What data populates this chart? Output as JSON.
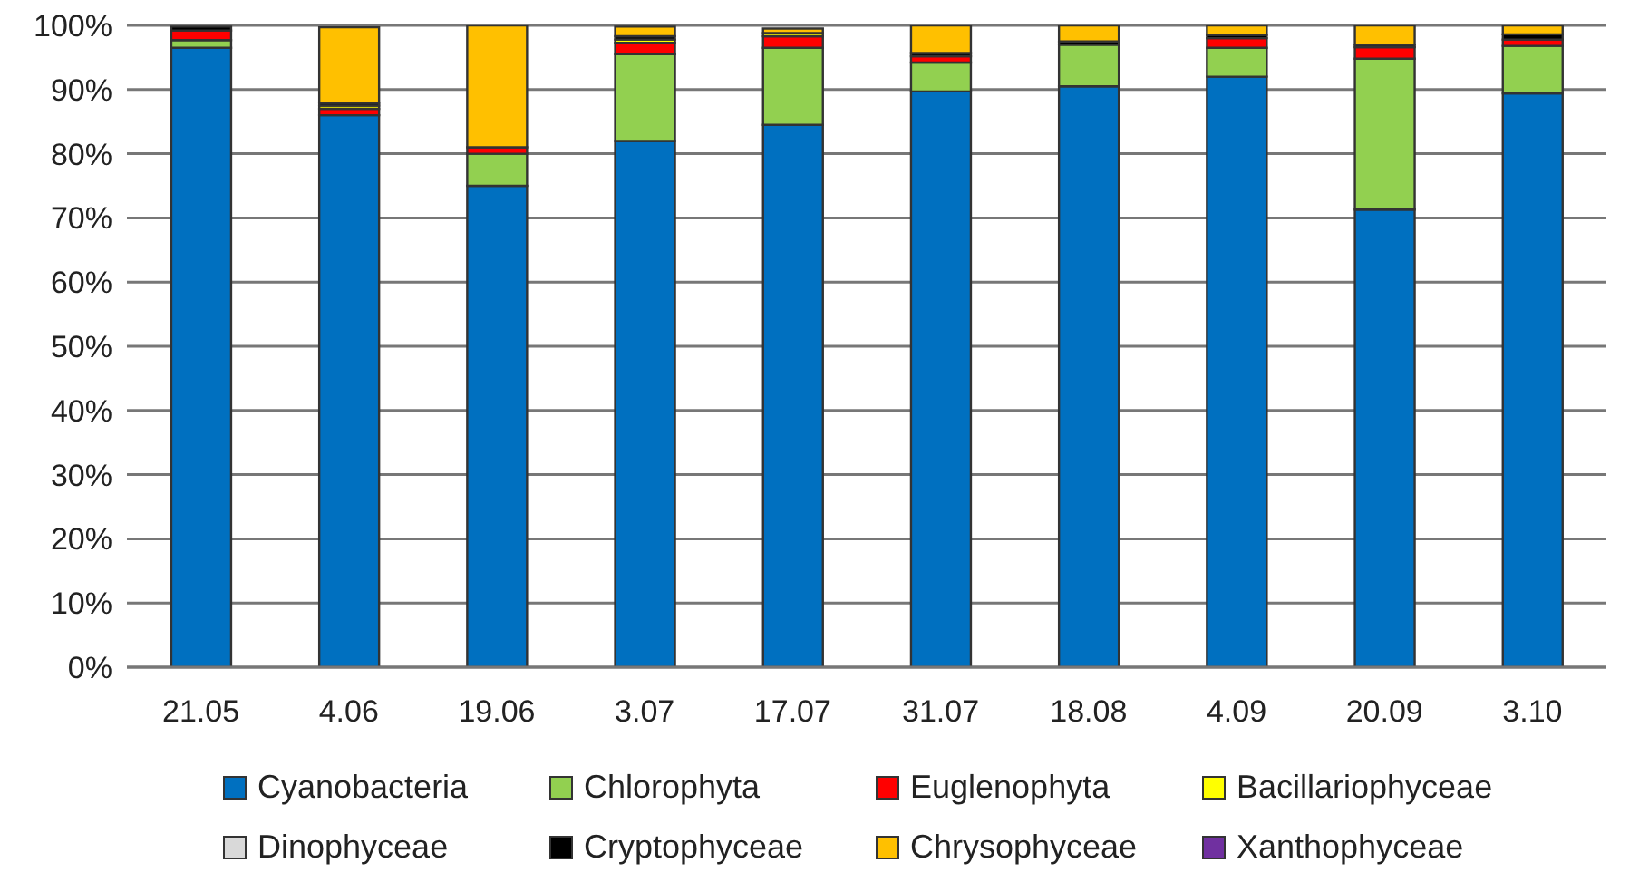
{
  "chart_data": {
    "type": "bar",
    "stacked": true,
    "categories": [
      "21.05",
      "4.06",
      "19.06",
      "3.07",
      "17.07",
      "31.07",
      "18.08",
      "4.09",
      "20.09",
      "3.10"
    ],
    "series": [
      {
        "name": "Cyanobacteria",
        "color": "#0070c0",
        "values": [
          96.5,
          86,
          75,
          82,
          84.5,
          89.7,
          90.5,
          92,
          71.3,
          89.4
        ]
      },
      {
        "name": "Chlorophyta",
        "color": "#92d050",
        "values": [
          1.2,
          0,
          5,
          13.5,
          12,
          4.5,
          6.5,
          4.5,
          23.5,
          7.4
        ]
      },
      {
        "name": "Euglenophyta",
        "color": "#ff0000",
        "values": [
          1.5,
          1,
          1,
          1.8,
          1.8,
          1,
          0,
          1.5,
          1.8,
          1
        ]
      },
      {
        "name": "Bacillariophyceae",
        "color": "#ffff00",
        "values": [
          null,
          0.5,
          0,
          0.5,
          0.5,
          0,
          0,
          0,
          0,
          0
        ]
      },
      {
        "name": "Dinophyceae",
        "color": "#d9d9d9",
        "values": [
          0,
          null,
          0,
          null,
          null,
          0,
          0,
          0,
          0,
          0
        ]
      },
      {
        "name": "Cryptophyceae",
        "color": "#000000",
        "values": [
          0.6,
          0.4,
          0,
          0.5,
          null,
          0.5,
          0.5,
          0.5,
          0.4,
          0.8
        ]
      },
      {
        "name": "Chrysophyceae",
        "color": "#ffc000",
        "values": [
          0,
          11.8,
          19,
          1.5,
          0.7,
          4.3,
          2.5,
          1.5,
          3,
          1.4
        ]
      },
      {
        "name": "Xanthophyceae",
        "color": "#7030a0",
        "values": [
          0,
          0,
          0,
          0,
          0,
          0,
          0,
          0,
          0,
          0
        ]
      }
    ],
    "ylim": [
      0,
      100
    ],
    "yticks": [
      {
        "value": 0,
        "label": "0%"
      },
      {
        "value": 10,
        "label": "10%"
      },
      {
        "value": 20,
        "label": "20%"
      },
      {
        "value": 30,
        "label": "30%"
      },
      {
        "value": 40,
        "label": "40%"
      },
      {
        "value": 50,
        "label": "50%"
      },
      {
        "value": 60,
        "label": "60%"
      },
      {
        "value": 70,
        "label": "70%"
      },
      {
        "value": 80,
        "label": "80%"
      },
      {
        "value": 90,
        "label": "90%"
      },
      {
        "value": 100,
        "label": "100%"
      }
    ],
    "grid": "y",
    "legend": "bottom"
  }
}
